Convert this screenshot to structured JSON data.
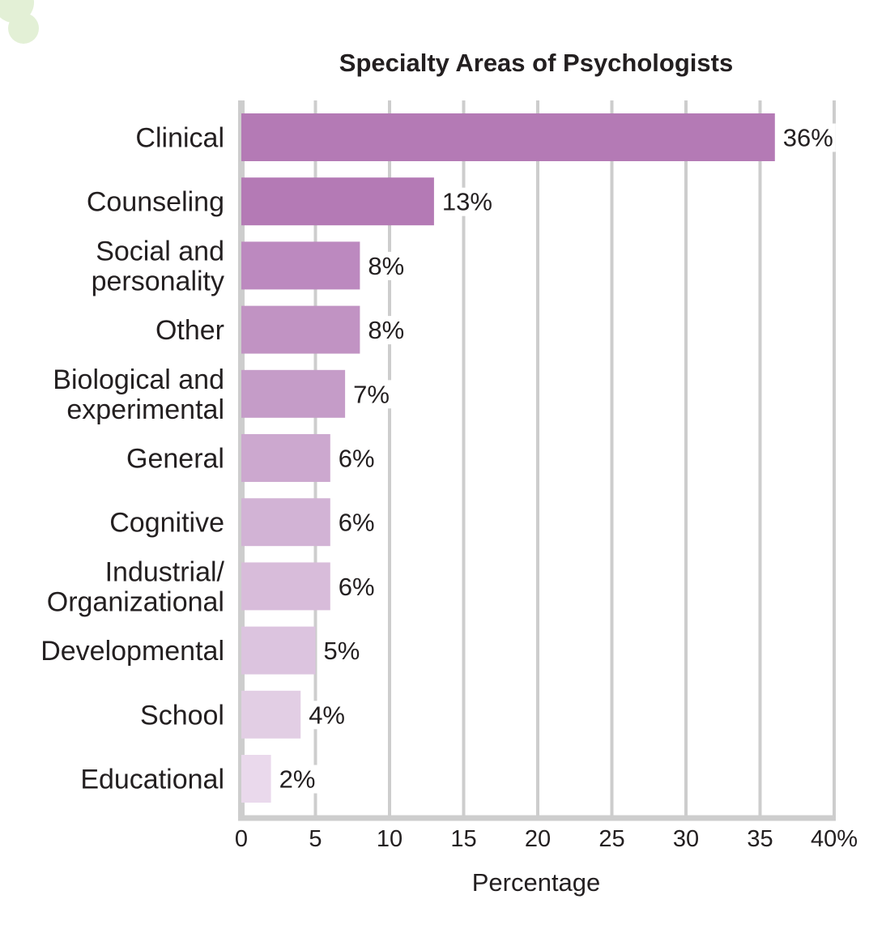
{
  "chart_data": {
    "type": "bar",
    "orientation": "horizontal",
    "title": "Specialty Areas of Psychologists",
    "xlabel": "Percentage",
    "ylabel": "",
    "xlim": [
      0,
      40
    ],
    "grid": true,
    "categories": [
      [
        "Clinical"
      ],
      [
        "Counseling"
      ],
      [
        "Social and",
        "personality"
      ],
      [
        "Other"
      ],
      [
        "Biological and",
        "experimental"
      ],
      [
        "General"
      ],
      [
        "Cognitive"
      ],
      [
        "Industrial/",
        "Organizational"
      ],
      [
        "Developmental"
      ],
      [
        "School"
      ],
      [
        "Educational"
      ]
    ],
    "values": [
      36,
      13,
      8,
      8,
      7,
      6,
      6,
      6,
      5,
      4,
      2
    ],
    "value_labels": [
      "36%",
      "13%",
      "8%",
      "8%",
      "7%",
      "6%",
      "6%",
      "6%",
      "5%",
      "4%",
      "2%"
    ],
    "tick_labels": [
      "0",
      "5",
      "10",
      "15",
      "20",
      "25",
      "30",
      "35",
      "40%"
    ],
    "tick_values": [
      0,
      5,
      10,
      15,
      20,
      25,
      30,
      35,
      40
    ],
    "bar_colors": [
      "#b47ab5",
      "#b47ab5",
      "#bc89bf",
      "#c193c3",
      "#c59cc8",
      "#cca8cf",
      "#d2b3d5",
      "#d8bcda",
      "#dcc4df",
      "#e2cee4",
      "#ead9ec"
    ],
    "grid_color": "#cdcdcd"
  }
}
